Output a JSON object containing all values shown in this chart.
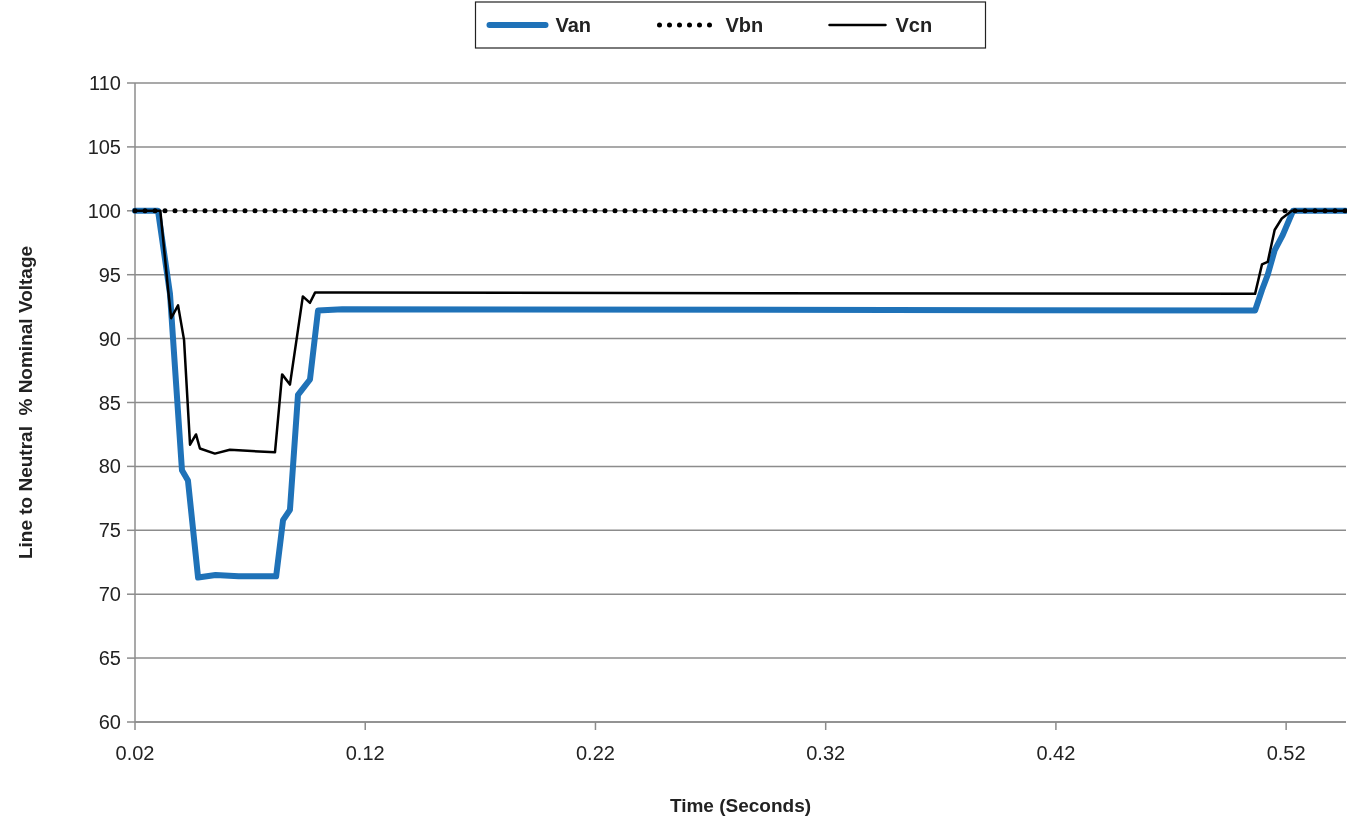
{
  "chart_data": {
    "type": "line",
    "xlabel": "Time (Seconds)",
    "ylabel": "Line to Neutral  % Nominal Voltage",
    "xlim": [
      0.02,
      0.546
    ],
    "xticks": [
      0.02,
      0.12,
      0.22,
      0.32,
      0.42,
      0.52
    ],
    "ylim": [
      60,
      110
    ],
    "yticks": [
      60,
      65,
      70,
      75,
      80,
      85,
      90,
      95,
      100,
      105,
      110
    ],
    "grid": "y",
    "legend": "top",
    "series": [
      {
        "name": "Van",
        "color": "#1f72b8",
        "line_style": "solid",
        "x": [
          0.02,
          0.03,
          0.0352,
          0.0404,
          0.043,
          0.0474,
          0.055,
          0.065,
          0.0813,
          0.0843,
          0.0873,
          0.0908,
          0.096,
          0.0995,
          0.11,
          0.5065,
          0.5095,
          0.512,
          0.515,
          0.5185,
          0.523,
          0.546
        ],
        "values": [
          100,
          100,
          93.5,
          79.7,
          78.9,
          71.3,
          71.5,
          71.4,
          71.4,
          75.8,
          76.6,
          85.6,
          86.8,
          92.2,
          92.3,
          92.2,
          93.8,
          95.0,
          96.9,
          98.1,
          100,
          100
        ]
      },
      {
        "name": "Vbn",
        "color": "#000000",
        "line_style": "dotted",
        "x": [
          0.02,
          0.546
        ],
        "values": [
          100,
          100
        ]
      },
      {
        "name": "Vcn",
        "color": "#000000",
        "line_style": "solid",
        "x": [
          0.02,
          0.031,
          0.0344,
          0.0357,
          0.0387,
          0.0413,
          0.0439,
          0.0465,
          0.0482,
          0.0547,
          0.0612,
          0.0808,
          0.0839,
          0.0873,
          0.0908,
          0.0929,
          0.096,
          0.0982,
          0.11,
          0.5065,
          0.5095,
          0.512,
          0.515,
          0.5181,
          0.5225,
          0.546
        ],
        "values": [
          100,
          100,
          93.8,
          91.6,
          92.6,
          89.9,
          81.7,
          82.5,
          81.4,
          81.0,
          81.3,
          81.1,
          87.2,
          86.4,
          90.7,
          93.3,
          92.8,
          93.6,
          93.6,
          93.5,
          95.8,
          96.0,
          98.5,
          99.4,
          100,
          100
        ]
      }
    ]
  }
}
